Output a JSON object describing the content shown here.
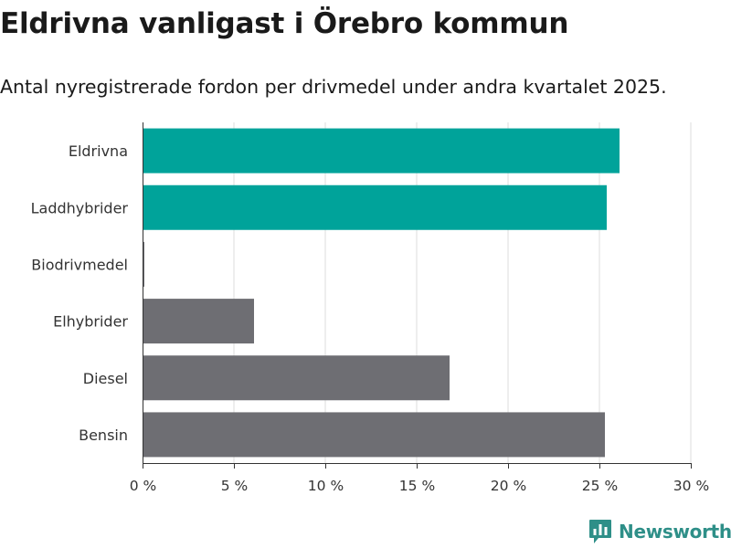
{
  "chart_data": {
    "type": "bar",
    "orientation": "horizontal",
    "title": "Eldrivna vanligast i Örebro kommun",
    "subtitle": "Antal nyregistrerade fordon per drivmedel under andra kvartalet 2025.",
    "categories": [
      "Eldrivna",
      "Laddhybrider",
      "Biodrivmedel",
      "Elhybrider",
      "Diesel",
      "Bensin"
    ],
    "values": [
      26.1,
      25.4,
      0.1,
      6.1,
      16.8,
      25.3
    ],
    "bar_colors": [
      "#00a39a",
      "#00a39a",
      "#6e6e73",
      "#6e6e73",
      "#6e6e73",
      "#6e6e73"
    ],
    "xlim": [
      0,
      30
    ],
    "x_ticks": [
      0,
      5,
      10,
      15,
      20,
      25,
      30
    ],
    "x_tick_labels": [
      "0 %",
      "5 %",
      "10 %",
      "15 %",
      "20 %",
      "25 %",
      "30 %"
    ],
    "grid": "vertical",
    "xlabel": "",
    "ylabel": ""
  },
  "branding": {
    "name": "Newsworthy",
    "color": "#2e8f88",
    "icon": "newsworthy-logo-icon"
  },
  "colors": {
    "grid": "#dddddd",
    "axis": "#333333",
    "text": "#1a1a1a"
  }
}
